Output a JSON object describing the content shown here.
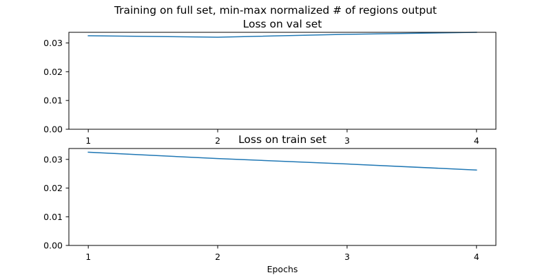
{
  "figure": {
    "suptitle": "Training on full set, min-max normalized # of regions output",
    "xlabel": "Epochs"
  },
  "colors": {
    "line": "#1f77b4",
    "spine": "#000000",
    "background": "#ffffff"
  },
  "chart_data": [
    {
      "type": "line",
      "title": "Loss on val set",
      "xlabel": "",
      "ylabel": "",
      "x": [
        1,
        2,
        3,
        4
      ],
      "x_tick_labels": [
        "1",
        "2",
        "3",
        "4"
      ],
      "y_tick_values": [
        0.0,
        0.01,
        0.02,
        0.03
      ],
      "y_tick_labels": [
        "0.00",
        "0.01",
        "0.02",
        "0.03"
      ],
      "xlim": [
        0.85,
        4.15
      ],
      "ylim": [
        0,
        0.0337
      ],
      "grid": false,
      "series": [
        {
          "values": [
            0.0325,
            0.032,
            0.033,
            0.0337
          ]
        }
      ]
    },
    {
      "type": "line",
      "title": "Loss on train set",
      "xlabel": "Epochs",
      "ylabel": "",
      "x": [
        1,
        2,
        3,
        4
      ],
      "x_tick_labels": [
        "1",
        "2",
        "3",
        "4"
      ],
      "y_tick_values": [
        0.0,
        0.01,
        0.02,
        0.03
      ],
      "y_tick_labels": [
        "0.00",
        "0.01",
        "0.02",
        "0.03"
      ],
      "xlim": [
        0.85,
        4.15
      ],
      "ylim": [
        0,
        0.0338
      ],
      "grid": false,
      "series": [
        {
          "values": [
            0.0325,
            0.0303,
            0.0284,
            0.0263
          ]
        }
      ]
    }
  ]
}
